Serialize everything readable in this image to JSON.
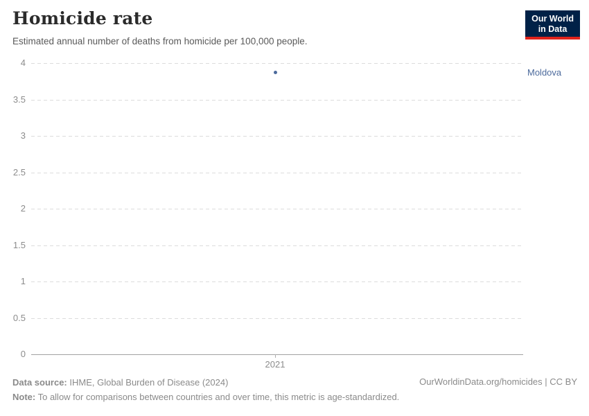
{
  "header": {
    "title": "Homicide rate",
    "subtitle": "Estimated annual number of deaths from homicide per 100,000 people.",
    "logo": {
      "line1": "Our World",
      "line2": "in Data",
      "bg_color": "#002147",
      "bar_color": "#e0231c"
    }
  },
  "chart_data": {
    "type": "scatter",
    "title": "Homicide rate",
    "subtitle": "Estimated annual number of deaths from homicide per 100,000 people.",
    "series": [
      {
        "name": "Moldova",
        "x": [
          2021
        ],
        "values": [
          3.87
        ],
        "color": "#4c6a9c"
      }
    ],
    "x_ticks": [
      "2021"
    ],
    "y_ticks": [
      0,
      0.5,
      1,
      1.5,
      2,
      2.5,
      3,
      3.5,
      4
    ],
    "ylim": [
      0,
      4
    ],
    "xlabel": "",
    "ylabel": "",
    "grid": "horizontal-dashed",
    "legend_position": "label-right-of-plot"
  },
  "footer": {
    "datasource_label": "Data source:",
    "datasource_text": " IHME, Global Burden of Disease (2024)",
    "note_label": "Note:",
    "note_text": " To allow for comparisons between countries and over time, this metric is age-standardized.",
    "citation": "OurWorldinData.org/homicides | CC BY"
  }
}
